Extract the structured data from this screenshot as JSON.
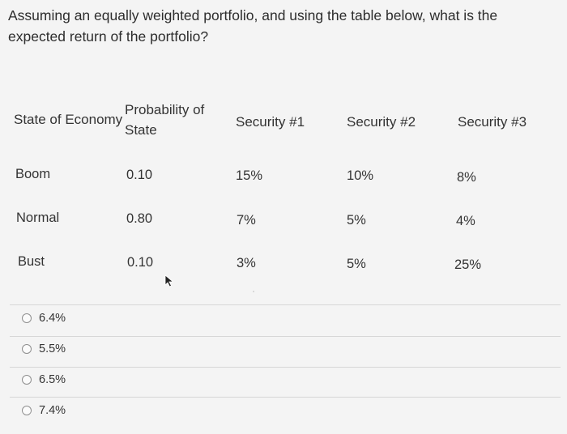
{
  "question": "Assuming an equally weighted portfolio, and using the table below, what is the expected return of the portfolio?",
  "table": {
    "headers": {
      "state": "State of Economy",
      "prob_line1": "Probability of",
      "prob_line2": "State",
      "sec1": "Security #1",
      "sec2": "Security #2",
      "sec3": "Security #3"
    },
    "rows": [
      {
        "state": "Boom",
        "prob": "0.10",
        "sec1": "15%",
        "sec2": "10%",
        "sec3": "8%"
      },
      {
        "state": "Normal",
        "prob": "0.80",
        "sec1": "7%",
        "sec2": "5%",
        "sec3": "4%"
      },
      {
        "state": "Bust",
        "prob": "0.10",
        "sec1": "3%",
        "sec2": "5%",
        "sec3": "25%"
      }
    ]
  },
  "options": [
    "6.4%",
    "5.5%",
    "6.5%",
    "7.4%"
  ],
  "icons": {
    "cursor": "mouse-pointer-icon",
    "radio": "radio-button-icon"
  }
}
